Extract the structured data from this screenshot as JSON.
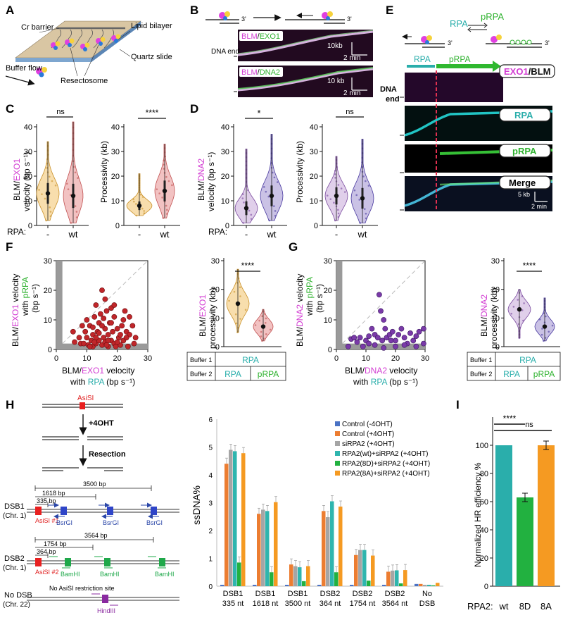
{
  "panels": {
    "A": {
      "label": "A",
      "cr_barrier": "Cr barrier",
      "lipid_bilayer": "Lipid bilayer",
      "buffer_flow": "Buffer flow",
      "quartz_slide": "Quartz slide",
      "resectosome": "Resectosome"
    },
    "B": {
      "label": "B",
      "three_prime": "3'",
      "dna_end": "DNA end",
      "k1": {
        "a": "BLM",
        "b": "EXO1",
        "scale_kb": "10kb",
        "scale_min": "2 min"
      },
      "k2": {
        "a": "BLM",
        "b": "DNA2",
        "scale_kb": "10 kb",
        "scale_min": "2 min"
      }
    },
    "C": {
      "label": "C",
      "ylabel_velocity": "BLM/EXO1 velocity (bp s⁻¹)",
      "ylabel_a": "BLM/",
      "ylabel_b": "EXO1",
      "ylabel_c": "velocity (bp s",
      "ylabel_d": "⁻¹)",
      "ylabel_proc": "Processivity (kb)",
      "sig_vel": "ns",
      "sig_proc": "****",
      "rpa": "RPA:",
      "cats": [
        "-",
        "wt"
      ]
    },
    "D": {
      "label": "D",
      "ylabel_a": "BLM/",
      "ylabel_b": "DNA2",
      "ylabel_c": "velocity (bp s",
      "ylabel_d": "⁻¹)",
      "ylabel_proc": "Processivity (kb)",
      "sig_vel": "*",
      "sig_proc": "ns",
      "rpa": "RPA:",
      "cats": [
        "-",
        "wt"
      ]
    },
    "E": {
      "label": "E",
      "rpa": "RPA",
      "prpa": "pRPA",
      "three_prime": "3'",
      "bar_rpa": "RPA",
      "bar_prpa": "pRPA",
      "k1_a": "EXO1",
      "k1_b": "/BLM",
      "k2": "RPA",
      "k3": "pRPA",
      "k4": "Merge",
      "dna_end": "DNA end",
      "scale_kb": "5 kb",
      "scale_min": "2 min"
    },
    "F": {
      "label": "F",
      "ylab1": "BLM/",
      "ylab2": "EXO1",
      "ylab3": " velocity",
      "ylab4": "with ",
      "ylab5": "pRPA",
      "ylab6": "(bp s⁻¹)",
      "xlab1": "BLM/",
      "xlab2": "EXO1",
      "xlab3": " velocity",
      "xlab4": "with ",
      "xlab5": "RPA",
      "xlab6": " (bp s⁻¹)",
      "sig": "****",
      "vylab1": "BLM/",
      "vylab2": "EXO1",
      "vylab3": "processivity (kb)",
      "buffer1": "Buffer 1",
      "buffer2": "Buffer 2",
      "b1v": "RPA",
      "b2a": "RPA",
      "b2b": "pRPA"
    },
    "G": {
      "label": "G",
      "ylab1": "BLM/",
      "ylab2": "DNA2",
      "ylab3": " velocity",
      "ylab4": "with ",
      "ylab5": "pRPA",
      "ylab6": "(bp s⁻¹)",
      "xlab1": "BLM/",
      "xlab2": "DNA2",
      "xlab3": " velocity",
      "xlab4": "with ",
      "xlab5": "RPA",
      "xlab6": " (bp s⁻¹)",
      "sig": "****",
      "vylab1": "BLM/",
      "vylab2": "DNA2",
      "vylab3": "processivity (kb)",
      "buffer1": "Buffer 1",
      "buffer2": "Buffer 2",
      "b1v": "RPA",
      "b2a": "RPA",
      "b2b": "pRPA"
    },
    "H": {
      "label": "H",
      "asisi": "AsiSI",
      "plus4oht": "+4OHT",
      "resection": "Resection",
      "dsb1": "DSB1",
      "chr1": "(Chr. 1)",
      "dsb2": "DSB2",
      "chr1b": "(Chr. 1)",
      "nodsb": "No DSB",
      "chr22": "(Chr. 22)",
      "d3500": "3500 bp",
      "d1618": "1618 bp",
      "d335": "335 bp",
      "asisi1": "AsiSI #1",
      "bsrgi": "BsrGI",
      "d3564": "3564 bp",
      "d1754": "1754 bp",
      "d364": "364 bp",
      "asisi2": "AsiSI #2",
      "bamhi": "BamHI",
      "no_site": "No AsiSI restriction site",
      "hindiii": "HindIII"
    },
    "I": {
      "label": "I",
      "sig1": "****",
      "sig2": "ns",
      "ylabel": "Normalized HR efficiency %",
      "rpa2": "RPA2:"
    }
  },
  "chart_data": [
    {
      "type": "bar",
      "title": "",
      "ylabel": "ssDNA%",
      "ylim": [
        0,
        6
      ],
      "categories": [
        "DSB1 335 nt",
        "DSB1 1618 nt",
        "DSB1 3500 nt",
        "DSB2 364 nt",
        "DSB2 1754 nt",
        "DSB2 3564 nt",
        "No DSB"
      ],
      "cat_line1": [
        "DSB1",
        "DSB1",
        "DSB1",
        "DSB2",
        "DSB2",
        "DSB2",
        "No"
      ],
      "cat_line2": [
        "335 nt",
        "1618 nt",
        "3500 nt",
        "364 nt",
        "1754 nt",
        "3564 nt",
        "DSB"
      ],
      "series": [
        {
          "name": "Control (-4OHT)",
          "color": "#4a72c4",
          "values": [
            0.05,
            0.05,
            0.05,
            0.05,
            0.05,
            0.05,
            0.08
          ]
        },
        {
          "name": "Control (+4OHT)",
          "color": "#ec7d31",
          "values": [
            4.4,
            2.6,
            0.78,
            2.7,
            1.12,
            0.52,
            0.08
          ]
        },
        {
          "name": "siRPA2 (+4OHT)",
          "color": "#a5a5a5",
          "values": [
            4.9,
            2.75,
            0.72,
            2.48,
            1.3,
            0.56,
            0.05
          ]
        },
        {
          "name": "RPA2(wt)+siRPA2 (+4OHT)",
          "color": "#2fb5ae",
          "values": [
            4.85,
            2.7,
            0.68,
            3.05,
            1.3,
            0.57,
            0.05
          ]
        },
        {
          "name": "RPA2(8D)+siRPA2 (+4OHT)",
          "color": "#22b140",
          "values": [
            0.85,
            0.5,
            0.18,
            0.5,
            0.2,
            0.1,
            0.03
          ]
        },
        {
          "name": "RPA2(8A)+siRPA2 (+4OHT)",
          "color": "#f59a22",
          "values": [
            4.78,
            3.02,
            0.72,
            2.86,
            1.1,
            0.58,
            0.12
          ]
        }
      ]
    },
    {
      "type": "bar",
      "ylabel": "Normalized HR efficiency %",
      "ylim": [
        0,
        120
      ],
      "categories": [
        "wt",
        "8D",
        "8A"
      ],
      "values": [
        100,
        63,
        100
      ],
      "colors": [
        "#2aaeab",
        "#22b140",
        "#f59a22"
      ]
    },
    {
      "type": "scatter",
      "title": "F",
      "xlim": [
        0,
        30
      ],
      "ylim": [
        0,
        30
      ],
      "ticks": [
        0,
        10,
        20,
        30
      ],
      "points": [
        [
          5.5,
          6
        ],
        [
          7.5,
          4
        ],
        [
          8,
          2
        ],
        [
          9,
          2
        ],
        [
          10,
          4
        ],
        [
          10.5,
          1.5
        ],
        [
          11,
          8
        ],
        [
          11.5,
          3
        ],
        [
          12,
          1
        ],
        [
          12,
          5
        ],
        [
          12.5,
          11
        ],
        [
          13,
          2
        ],
        [
          13.5,
          6
        ],
        [
          14,
          3
        ],
        [
          14,
          9
        ],
        [
          15,
          20
        ],
        [
          15,
          1.5
        ],
        [
          15.5,
          4
        ],
        [
          16,
          7
        ],
        [
          16,
          2.5
        ],
        [
          16.5,
          13
        ],
        [
          17,
          5
        ],
        [
          17,
          1
        ],
        [
          17.5,
          9
        ],
        [
          18,
          3
        ],
        [
          18.5,
          6
        ],
        [
          19,
          2
        ],
        [
          19,
          11
        ],
        [
          20,
          7
        ],
        [
          20.5,
          4
        ],
        [
          21,
          1.5
        ],
        [
          22,
          10
        ],
        [
          22,
          3
        ],
        [
          23,
          6
        ],
        [
          23.5,
          1
        ],
        [
          24,
          5
        ],
        [
          25,
          8
        ],
        [
          25.5,
          2
        ],
        [
          13,
          15
        ],
        [
          14.5,
          12
        ],
        [
          16,
          17
        ],
        [
          18,
          14
        ],
        [
          12,
          7.5
        ],
        [
          9.5,
          6
        ],
        [
          6,
          2.5
        ],
        [
          11,
          1
        ],
        [
          19.5,
          1
        ],
        [
          21.5,
          8
        ],
        [
          17,
          3
        ],
        [
          14,
          5.5
        ],
        [
          13,
          4
        ],
        [
          15,
          8
        ],
        [
          18,
          9
        ],
        [
          20,
          2.5
        ],
        [
          23,
          4
        ],
        [
          24,
          11
        ],
        [
          10,
          10
        ],
        [
          12.5,
          2.5
        ],
        [
          16.5,
          1.5
        ],
        [
          21,
          5
        ],
        [
          22.5,
          13
        ],
        [
          15.5,
          10.5
        ],
        [
          19,
          15
        ],
        [
          8.5,
          8
        ],
        [
          26,
          4
        ]
      ]
    },
    {
      "type": "scatter",
      "title": "G",
      "xlim": [
        0,
        30
      ],
      "ylim": [
        0,
        30
      ],
      "ticks": [
        0,
        10,
        20,
        30
      ],
      "points": [
        [
          4,
          1
        ],
        [
          5,
          3.5
        ],
        [
          6,
          4
        ],
        [
          7,
          2.5
        ],
        [
          8,
          4
        ],
        [
          9,
          1
        ],
        [
          10,
          3
        ],
        [
          11,
          4.5
        ],
        [
          12,
          7
        ],
        [
          13,
          5
        ],
        [
          14,
          4
        ],
        [
          14.5,
          18.5
        ],
        [
          15,
          13
        ],
        [
          15.5,
          3
        ],
        [
          16,
          10
        ],
        [
          16.5,
          7
        ],
        [
          17,
          4
        ],
        [
          18,
          5
        ],
        [
          18.5,
          3
        ],
        [
          19,
          6
        ],
        [
          20,
          3
        ],
        [
          21,
          5
        ],
        [
          22,
          7
        ],
        [
          23,
          4
        ],
        [
          24,
          2
        ],
        [
          25,
          5.5
        ],
        [
          26,
          3
        ],
        [
          27,
          4.5
        ],
        [
          28,
          6
        ],
        [
          29.5,
          7
        ],
        [
          29.5,
          2
        ],
        [
          11,
          2
        ],
        [
          13,
          1.5
        ],
        [
          20,
          1
        ],
        [
          23,
          1.5
        ],
        [
          27,
          1
        ],
        [
          16,
          0.5
        ]
      ]
    }
  ]
}
